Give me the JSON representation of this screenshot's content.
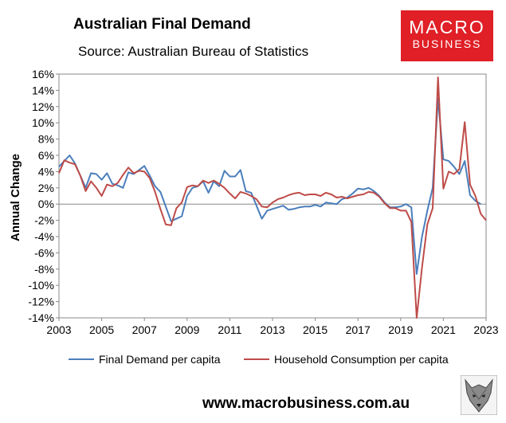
{
  "header": {
    "title": "Australian Final Demand",
    "subtitle": "Source: Australian Bureau of Statistics"
  },
  "logo": {
    "line1": "MACRO",
    "line2": "BUSINESS",
    "color": "#e01f26"
  },
  "footer": {
    "url": "www.macrobusiness.com.au"
  },
  "chart_data": {
    "type": "line",
    "title": "Australian Final Demand",
    "ylabel": "Annual Change",
    "xlabel": "",
    "xlim": [
      2003,
      2023
    ],
    "ylim": [
      -14,
      16
    ],
    "xticks": [
      "2003",
      "2005",
      "2007",
      "2009",
      "2011",
      "2013",
      "2015",
      "2017",
      "2019",
      "2021",
      "2023"
    ],
    "yticks": [
      "16%",
      "14%",
      "12%",
      "10%",
      "8%",
      "6%",
      "4%",
      "2%",
      "0%",
      "-2%",
      "-4%",
      "-6%",
      "-8%",
      "-10%",
      "-12%",
      "-14%"
    ],
    "grid": false,
    "legend_position": "bottom",
    "series": [
      {
        "name": "Final Demand per capita",
        "color": "#4a7ebb",
        "x": [
          2003.0,
          2003.25,
          2003.5,
          2003.75,
          2004.0,
          2004.25,
          2004.5,
          2004.75,
          2005.0,
          2005.25,
          2005.5,
          2005.75,
          2006.0,
          2006.25,
          2006.5,
          2006.75,
          2007.0,
          2007.25,
          2007.5,
          2007.75,
          2008.0,
          2008.25,
          2008.5,
          2008.75,
          2009.0,
          2009.25,
          2009.5,
          2009.75,
          2010.0,
          2010.25,
          2010.5,
          2010.75,
          2011.0,
          2011.25,
          2011.5,
          2011.75,
          2012.0,
          2012.25,
          2012.5,
          2012.75,
          2013.0,
          2013.25,
          2013.5,
          2013.75,
          2014.0,
          2014.25,
          2014.5,
          2014.75,
          2015.0,
          2015.25,
          2015.5,
          2015.75,
          2016.0,
          2016.25,
          2016.5,
          2016.75,
          2017.0,
          2017.25,
          2017.5,
          2017.75,
          2018.0,
          2018.25,
          2018.5,
          2018.75,
          2019.0,
          2019.25,
          2019.5,
          2019.75,
          2020.0,
          2020.25,
          2020.5,
          2020.75,
          2021.0,
          2021.25,
          2021.5,
          2021.75,
          2022.0,
          2022.25,
          2022.5,
          2022.75
        ],
        "values": [
          4.6,
          5.3,
          6.0,
          5.0,
          3.5,
          2.0,
          3.8,
          3.7,
          3.0,
          3.8,
          2.5,
          2.3,
          2.0,
          3.9,
          3.7,
          4.2,
          4.7,
          3.5,
          2.2,
          1.5,
          -0.3,
          -2.1,
          -1.8,
          -1.5,
          1.0,
          2.0,
          2.2,
          2.8,
          1.4,
          2.8,
          2.2,
          4.1,
          3.4,
          3.4,
          4.2,
          1.6,
          1.4,
          -0.2,
          -1.8,
          -0.8,
          -0.6,
          -0.4,
          -0.2,
          -0.7,
          -0.6,
          -0.4,
          -0.3,
          -0.3,
          -0.1,
          -0.3,
          0.2,
          0.1,
          0.0,
          0.6,
          0.8,
          1.3,
          1.9,
          1.8,
          2.0,
          1.6,
          1.0,
          0.2,
          -0.4,
          -0.4,
          -0.3,
          0.0,
          -0.4,
          -8.6,
          -4.0,
          -0.8,
          2.0,
          13.0,
          5.5,
          5.3,
          4.6,
          3.7,
          5.3,
          1.1,
          0.4,
          0.0
        ]
      },
      {
        "name": "Household Consumption per capita",
        "color": "#be4b48",
        "x": [
          2003.0,
          2003.25,
          2003.5,
          2003.75,
          2004.0,
          2004.25,
          2004.5,
          2004.75,
          2005.0,
          2005.25,
          2005.5,
          2005.75,
          2006.0,
          2006.25,
          2006.5,
          2006.75,
          2007.0,
          2007.25,
          2007.5,
          2007.75,
          2008.0,
          2008.25,
          2008.5,
          2008.75,
          2009.0,
          2009.25,
          2009.5,
          2009.75,
          2010.0,
          2010.25,
          2010.5,
          2010.75,
          2011.0,
          2011.25,
          2011.5,
          2011.75,
          2012.0,
          2012.25,
          2012.5,
          2012.75,
          2013.0,
          2013.25,
          2013.5,
          2013.75,
          2014.0,
          2014.25,
          2014.5,
          2014.75,
          2015.0,
          2015.25,
          2015.5,
          2015.75,
          2016.0,
          2016.25,
          2016.5,
          2016.75,
          2017.0,
          2017.25,
          2017.5,
          2017.75,
          2018.0,
          2018.25,
          2018.5,
          2018.75,
          2019.0,
          2019.25,
          2019.5,
          2019.75,
          2020.0,
          2020.25,
          2020.5,
          2020.75,
          2021.0,
          2021.25,
          2021.5,
          2021.75,
          2022.0,
          2022.25,
          2022.5,
          2022.75,
          2023.0
        ],
        "values": [
          3.8,
          5.4,
          5.1,
          4.9,
          3.5,
          1.6,
          2.8,
          2.0,
          1.0,
          2.4,
          2.2,
          2.6,
          3.6,
          4.5,
          3.8,
          4.1,
          4.0,
          3.2,
          1.5,
          -0.6,
          -2.5,
          -2.6,
          -0.5,
          0.2,
          2.1,
          2.3,
          2.2,
          2.9,
          2.6,
          2.9,
          2.5,
          2.0,
          1.3,
          0.7,
          1.5,
          1.3,
          1.0,
          0.6,
          -0.3,
          -0.4,
          0.2,
          0.6,
          0.8,
          1.1,
          1.3,
          1.4,
          1.1,
          1.2,
          1.2,
          1.0,
          1.4,
          1.2,
          0.8,
          0.9,
          0.7,
          0.9,
          1.1,
          1.2,
          1.5,
          1.4,
          0.9,
          0.1,
          -0.5,
          -0.5,
          -0.8,
          -0.8,
          -2.2,
          -14.0,
          -7.8,
          -2.5,
          -0.5,
          15.6,
          1.9,
          4.0,
          3.7,
          4.3,
          10.1,
          2.4,
          1.0,
          -1.2,
          -2.0
        ]
      }
    ]
  }
}
